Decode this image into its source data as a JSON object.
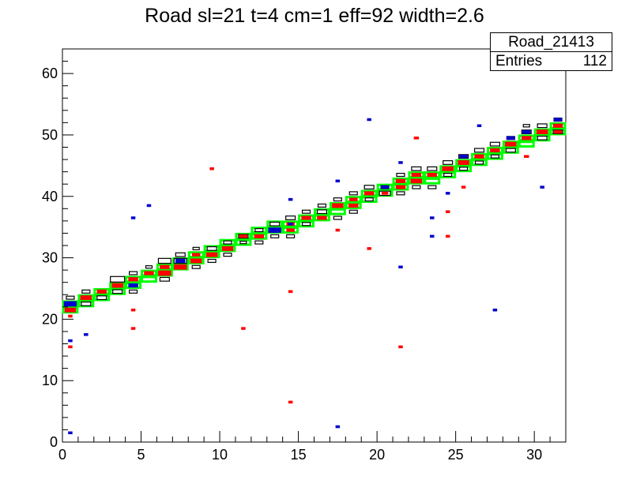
{
  "title": "Road sl=21 t=4 cm=1 eff=92 width=2.6",
  "stats": {
    "name": "Road_21413",
    "entries_label": "Entries",
    "entries_value": "112"
  },
  "chart_data": {
    "type": "scatter",
    "xlim": [
      0,
      32
    ],
    "ylim": [
      0,
      64
    ],
    "x_ticks": [
      0,
      5,
      10,
      15,
      20,
      25,
      30
    ],
    "y_ticks": [
      0,
      10,
      20,
      30,
      40,
      50,
      60
    ],
    "colors": {
      "road": "#00ff00",
      "red": "#ff0000",
      "blue": "#0000cc",
      "black": "#000000"
    },
    "road_boxes": [
      {
        "x": 0.5,
        "y": 21.5
      },
      {
        "x": 0.5,
        "y": 22.5
      },
      {
        "x": 1.5,
        "y": 22.5
      },
      {
        "x": 1.5,
        "y": 23.5
      },
      {
        "x": 2.5,
        "y": 23.5
      },
      {
        "x": 2.5,
        "y": 24.5
      },
      {
        "x": 3.5,
        "y": 24.5
      },
      {
        "x": 3.5,
        "y": 25.5
      },
      {
        "x": 4.5,
        "y": 25.5
      },
      {
        "x": 4.5,
        "y": 26.5
      },
      {
        "x": 5.5,
        "y": 26.5
      },
      {
        "x": 5.5,
        "y": 27.5
      },
      {
        "x": 6.5,
        "y": 27.5
      },
      {
        "x": 6.5,
        "y": 28.5
      },
      {
        "x": 7.5,
        "y": 28.5
      },
      {
        "x": 7.5,
        "y": 29.5
      },
      {
        "x": 8.5,
        "y": 29.5
      },
      {
        "x": 8.5,
        "y": 30.5
      },
      {
        "x": 9.5,
        "y": 30.5
      },
      {
        "x": 9.5,
        "y": 31.5
      },
      {
        "x": 10.5,
        "y": 31.5
      },
      {
        "x": 10.5,
        "y": 32.5
      },
      {
        "x": 11.5,
        "y": 32.5
      },
      {
        "x": 11.5,
        "y": 33.5
      },
      {
        "x": 12.5,
        "y": 33.5
      },
      {
        "x": 12.5,
        "y": 34.5
      },
      {
        "x": 13.5,
        "y": 34.5
      },
      {
        "x": 13.5,
        "y": 35.5
      },
      {
        "x": 14.5,
        "y": 34.5
      },
      {
        "x": 14.5,
        "y": 35.5
      },
      {
        "x": 15.5,
        "y": 35.5
      },
      {
        "x": 15.5,
        "y": 36.5
      },
      {
        "x": 16.5,
        "y": 36.5
      },
      {
        "x": 16.5,
        "y": 37.5
      },
      {
        "x": 17.5,
        "y": 37.5
      },
      {
        "x": 17.5,
        "y": 38.5
      },
      {
        "x": 18.5,
        "y": 38.5
      },
      {
        "x": 18.5,
        "y": 39.5
      },
      {
        "x": 19.5,
        "y": 39.5
      },
      {
        "x": 19.5,
        "y": 40.5
      },
      {
        "x": 20.5,
        "y": 40.5
      },
      {
        "x": 20.5,
        "y": 41.5
      },
      {
        "x": 21.5,
        "y": 41.5
      },
      {
        "x": 21.5,
        "y": 42.5
      },
      {
        "x": 22.5,
        "y": 42.5
      },
      {
        "x": 22.5,
        "y": 43.5
      },
      {
        "x": 23.5,
        "y": 42.5
      },
      {
        "x": 23.5,
        "y": 43.5
      },
      {
        "x": 24.5,
        "y": 43.5
      },
      {
        "x": 24.5,
        "y": 44.5
      },
      {
        "x": 25.5,
        "y": 44.5
      },
      {
        "x": 25.5,
        "y": 45.5
      },
      {
        "x": 26.5,
        "y": 45.5
      },
      {
        "x": 26.5,
        "y": 46.5
      },
      {
        "x": 27.5,
        "y": 46.5
      },
      {
        "x": 27.5,
        "y": 47.5
      },
      {
        "x": 28.5,
        "y": 47.5
      },
      {
        "x": 28.5,
        "y": 48.5
      },
      {
        "x": 29.5,
        "y": 48.5
      },
      {
        "x": 29.5,
        "y": 49.5
      },
      {
        "x": 30.5,
        "y": 49.5
      },
      {
        "x": 30.5,
        "y": 50.5
      },
      {
        "x": 31.5,
        "y": 50.5
      },
      {
        "x": 31.5,
        "y": 51.5
      }
    ],
    "black_boxes": [
      {
        "x": 0.5,
        "y": 23.5,
        "s": 0.5
      },
      {
        "x": 1.5,
        "y": 24.5,
        "s": 0.5
      },
      {
        "x": 1.5,
        "y": 22.5,
        "s": 0.6
      },
      {
        "x": 2.5,
        "y": 23.5,
        "s": 0.6
      },
      {
        "x": 3.5,
        "y": 26.5,
        "s": 0.9
      },
      {
        "x": 3.5,
        "y": 24.5,
        "s": 0.6
      },
      {
        "x": 4.5,
        "y": 27.5,
        "s": 0.5
      },
      {
        "x": 4.5,
        "y": 24.5,
        "s": 0.5
      },
      {
        "x": 5.5,
        "y": 28.5,
        "s": 0.4
      },
      {
        "x": 6.5,
        "y": 29.5,
        "s": 0.8
      },
      {
        "x": 6.5,
        "y": 26.5,
        "s": 0.6
      },
      {
        "x": 7.5,
        "y": 30.5,
        "s": 0.6
      },
      {
        "x": 7.5,
        "y": 29.5,
        "s": 0.8
      },
      {
        "x": 8.5,
        "y": 31.5,
        "s": 0.4
      },
      {
        "x": 8.5,
        "y": 28.5,
        "s": 0.5
      },
      {
        "x": 9.5,
        "y": 31.5,
        "s": 0.6
      },
      {
        "x": 9.5,
        "y": 29.5,
        "s": 0.5
      },
      {
        "x": 10.5,
        "y": 32.5,
        "s": 0.5
      },
      {
        "x": 10.5,
        "y": 30.5,
        "s": 0.5
      },
      {
        "x": 11.5,
        "y": 33.5,
        "s": 0.6
      },
      {
        "x": 11.5,
        "y": 32.5,
        "s": 0.4
      },
      {
        "x": 12.5,
        "y": 34.5,
        "s": 0.5
      },
      {
        "x": 12.5,
        "y": 32.5,
        "s": 0.5
      },
      {
        "x": 13.5,
        "y": 35.5,
        "s": 0.6
      },
      {
        "x": 13.5,
        "y": 33.5,
        "s": 0.5
      },
      {
        "x": 14.5,
        "y": 36.5,
        "s": 0.6
      },
      {
        "x": 14.5,
        "y": 33.5,
        "s": 0.5
      },
      {
        "x": 15.5,
        "y": 37.5,
        "s": 0.5
      },
      {
        "x": 15.5,
        "y": 35.5,
        "s": 0.5
      },
      {
        "x": 16.5,
        "y": 38.5,
        "s": 0.5
      },
      {
        "x": 16.5,
        "y": 37.5,
        "s": 0.6
      },
      {
        "x": 17.5,
        "y": 39.5,
        "s": 0.5
      },
      {
        "x": 17.5,
        "y": 36.5,
        "s": 0.5
      },
      {
        "x": 18.5,
        "y": 40.5,
        "s": 0.5
      },
      {
        "x": 18.5,
        "y": 37.5,
        "s": 0.5
      },
      {
        "x": 19.5,
        "y": 41.5,
        "s": 0.6
      },
      {
        "x": 19.5,
        "y": 39.5,
        "s": 0.5
      },
      {
        "x": 20.5,
        "y": 40.5,
        "s": 0.7
      },
      {
        "x": 20.5,
        "y": 41.5,
        "s": 0.5
      },
      {
        "x": 21.5,
        "y": 43.5,
        "s": 0.5
      },
      {
        "x": 21.5,
        "y": 40.5,
        "s": 0.5
      },
      {
        "x": 22.5,
        "y": 44.5,
        "s": 0.6
      },
      {
        "x": 22.5,
        "y": 41.5,
        "s": 0.5
      },
      {
        "x": 23.5,
        "y": 44.5,
        "s": 0.6
      },
      {
        "x": 23.5,
        "y": 41.5,
        "s": 0.5
      },
      {
        "x": 24.5,
        "y": 45.5,
        "s": 0.6
      },
      {
        "x": 24.5,
        "y": 43.5,
        "s": 0.5
      },
      {
        "x": 25.5,
        "y": 46.5,
        "s": 0.6
      },
      {
        "x": 25.5,
        "y": 44.5,
        "s": 0.5
      },
      {
        "x": 26.5,
        "y": 47.5,
        "s": 0.6
      },
      {
        "x": 26.5,
        "y": 45.5,
        "s": 0.5
      },
      {
        "x": 27.5,
        "y": 48.5,
        "s": 0.6
      },
      {
        "x": 27.5,
        "y": 46.5,
        "s": 0.5
      },
      {
        "x": 28.5,
        "y": 49.5,
        "s": 0.5
      },
      {
        "x": 28.5,
        "y": 47.5,
        "s": 0.6
      },
      {
        "x": 29.5,
        "y": 50.5,
        "s": 0.6
      },
      {
        "x": 29.5,
        "y": 51.5,
        "s": 0.4
      },
      {
        "x": 30.5,
        "y": 51.5,
        "s": 0.6
      },
      {
        "x": 30.5,
        "y": 49.5,
        "s": 0.6
      },
      {
        "x": 31.5,
        "y": 52.5,
        "s": 0.5
      },
      {
        "x": 31.5,
        "y": 50.5,
        "s": 0.6
      }
    ],
    "red_boxes": [
      {
        "x": 0.5,
        "y": 21.5,
        "s": 0.7
      },
      {
        "x": 1.5,
        "y": 23.5,
        "s": 0.7
      },
      {
        "x": 2.5,
        "y": 24.5,
        "s": 0.6
      },
      {
        "x": 3.5,
        "y": 25.5,
        "s": 0.7
      },
      {
        "x": 4.5,
        "y": 26.5,
        "s": 0.6
      },
      {
        "x": 5.5,
        "y": 27.5,
        "s": 0.6
      },
      {
        "x": 6.5,
        "y": 27.5,
        "s": 0.8
      },
      {
        "x": 6.5,
        "y": 28.5,
        "s": 0.6
      },
      {
        "x": 7.5,
        "y": 28.5,
        "s": 0.8
      },
      {
        "x": 8.5,
        "y": 29.5,
        "s": 0.7
      },
      {
        "x": 8.5,
        "y": 30.5,
        "s": 0.5
      },
      {
        "x": 9.5,
        "y": 30.5,
        "s": 0.7
      },
      {
        "x": 10.5,
        "y": 31.5,
        "s": 0.7
      },
      {
        "x": 11.5,
        "y": 33.5,
        "s": 0.5
      },
      {
        "x": 12.5,
        "y": 33.5,
        "s": 0.6
      },
      {
        "x": 13.5,
        "y": 34.5,
        "s": 0.5
      },
      {
        "x": 14.5,
        "y": 35.5,
        "s": 0.5
      },
      {
        "x": 14.5,
        "y": 34.5,
        "s": 0.5
      },
      {
        "x": 15.5,
        "y": 36.5,
        "s": 0.6
      },
      {
        "x": 16.5,
        "y": 36.5,
        "s": 0.6
      },
      {
        "x": 17.5,
        "y": 38.5,
        "s": 0.7
      },
      {
        "x": 18.5,
        "y": 38.5,
        "s": 0.6
      },
      {
        "x": 18.5,
        "y": 39.5,
        "s": 0.5
      },
      {
        "x": 19.5,
        "y": 40.5,
        "s": 0.6
      },
      {
        "x": 20.5,
        "y": 40.5,
        "s": 0.4
      },
      {
        "x": 21.5,
        "y": 41.5,
        "s": 0.6
      },
      {
        "x": 21.5,
        "y": 42.5,
        "s": 0.6
      },
      {
        "x": 22.5,
        "y": 42.5,
        "s": 0.7
      },
      {
        "x": 22.5,
        "y": 43.5,
        "s": 0.6
      },
      {
        "x": 23.5,
        "y": 43.5,
        "s": 0.6
      },
      {
        "x": 24.5,
        "y": 44.5,
        "s": 0.7
      },
      {
        "x": 25.5,
        "y": 45.5,
        "s": 0.7
      },
      {
        "x": 26.5,
        "y": 46.5,
        "s": 0.6
      },
      {
        "x": 27.5,
        "y": 47.5,
        "s": 0.6
      },
      {
        "x": 28.5,
        "y": 48.5,
        "s": 0.7
      },
      {
        "x": 29.5,
        "y": 49.5,
        "s": 0.6
      },
      {
        "x": 30.5,
        "y": 50.5,
        "s": 0.7
      },
      {
        "x": 31.5,
        "y": 51.5,
        "s": 0.6
      },
      {
        "x": 31.5,
        "y": 50.5,
        "s": 0.5
      },
      {
        "x": 0.5,
        "y": 20.5,
        "s": 0.25
      },
      {
        "x": 0.5,
        "y": 15.5,
        "s": 0.25
      },
      {
        "x": 4.5,
        "y": 21.5,
        "s": 0.25
      },
      {
        "x": 4.5,
        "y": 18.5,
        "s": 0.25
      },
      {
        "x": 9.5,
        "y": 44.5,
        "s": 0.25
      },
      {
        "x": 11.5,
        "y": 18.5,
        "s": 0.25
      },
      {
        "x": 14.5,
        "y": 24.5,
        "s": 0.25
      },
      {
        "x": 14.5,
        "y": 6.5,
        "s": 0.25
      },
      {
        "x": 17.5,
        "y": 34.5,
        "s": 0.25
      },
      {
        "x": 19.5,
        "y": 31.5,
        "s": 0.25
      },
      {
        "x": 21.5,
        "y": 15.5,
        "s": 0.25
      },
      {
        "x": 22.5,
        "y": 49.5,
        "s": 0.3
      },
      {
        "x": 24.5,
        "y": 37.5,
        "s": 0.25
      },
      {
        "x": 24.5,
        "y": 33.5,
        "s": 0.25
      },
      {
        "x": 25.5,
        "y": 41.5,
        "s": 0.25
      },
      {
        "x": 29.5,
        "y": 46.5,
        "s": 0.3
      }
    ],
    "blue_boxes": [
      {
        "x": 0.5,
        "y": 22.5,
        "s": 0.8
      },
      {
        "x": 4.5,
        "y": 25.5,
        "s": 0.6
      },
      {
        "x": 7.5,
        "y": 29.5,
        "s": 0.6
      },
      {
        "x": 13.5,
        "y": 34.5,
        "s": 0.8
      },
      {
        "x": 20.5,
        "y": 41.5,
        "s": 0.5
      },
      {
        "x": 28.5,
        "y": 49.5,
        "s": 0.5
      },
      {
        "x": 29.5,
        "y": 50.5,
        "s": 0.5
      },
      {
        "x": 31.5,
        "y": 52.5,
        "s": 0.5
      },
      {
        "x": 25.5,
        "y": 46.5,
        "s": 0.5
      },
      {
        "x": 14.5,
        "y": 35.5,
        "s": 0.3
      },
      {
        "x": 0.5,
        "y": 16.5,
        "s": 0.25
      },
      {
        "x": 0.5,
        "y": 1.5,
        "s": 0.25
      },
      {
        "x": 1.5,
        "y": 17.5,
        "s": 0.25
      },
      {
        "x": 4.5,
        "y": 36.5,
        "s": 0.25
      },
      {
        "x": 5.5,
        "y": 38.5,
        "s": 0.25
      },
      {
        "x": 14.5,
        "y": 39.5,
        "s": 0.25
      },
      {
        "x": 17.5,
        "y": 2.5,
        "s": 0.25
      },
      {
        "x": 17.5,
        "y": 42.5,
        "s": 0.25
      },
      {
        "x": 19.5,
        "y": 52.5,
        "s": 0.25
      },
      {
        "x": 21.5,
        "y": 28.5,
        "s": 0.25
      },
      {
        "x": 21.5,
        "y": 45.5,
        "s": 0.25
      },
      {
        "x": 23.5,
        "y": 36.5,
        "s": 0.25
      },
      {
        "x": 23.5,
        "y": 33.5,
        "s": 0.25
      },
      {
        "x": 24.5,
        "y": 40.5,
        "s": 0.25
      },
      {
        "x": 26.5,
        "y": 51.5,
        "s": 0.25
      },
      {
        "x": 27.5,
        "y": 21.5,
        "s": 0.25
      },
      {
        "x": 30.5,
        "y": 41.5,
        "s": 0.25
      }
    ]
  }
}
